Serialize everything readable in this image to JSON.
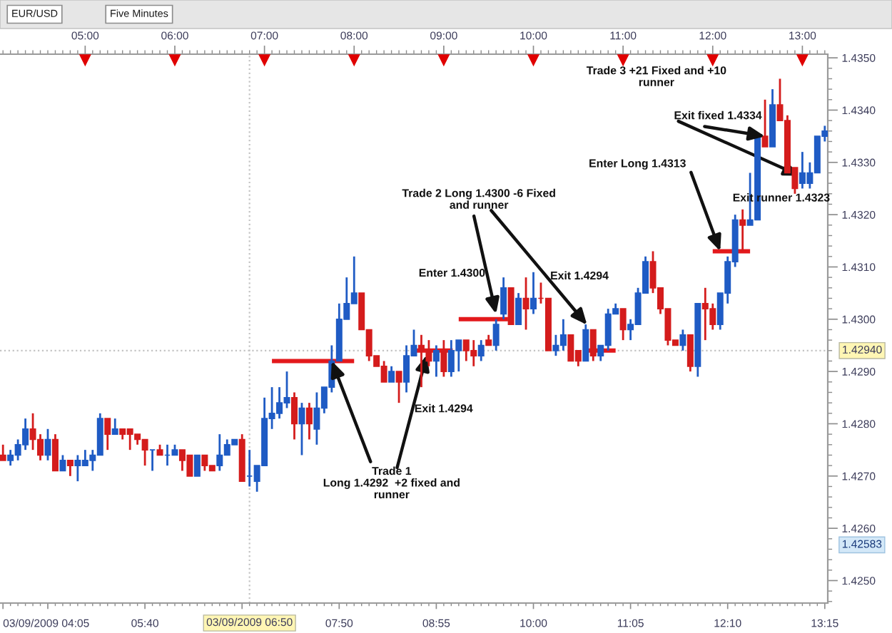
{
  "chart_data": {
    "type": "candlestick",
    "title": "EUR/USD",
    "subtitle": "Five Minutes",
    "x": [
      "2009-09-03T04:05",
      "2009-09-03T04:10",
      "2009-09-03T04:15",
      "2009-09-03T04:20",
      "2009-09-03T04:25",
      "2009-09-03T04:30",
      "2009-09-03T04:35",
      "2009-09-03T04:40",
      "2009-09-03T04:45",
      "2009-09-03T04:50",
      "2009-09-03T04:55",
      "2009-09-03T05:00",
      "2009-09-03T05:05",
      "2009-09-03T05:10",
      "2009-09-03T05:15",
      "2009-09-03T05:20",
      "2009-09-03T05:25",
      "2009-09-03T05:30",
      "2009-09-03T05:35",
      "2009-09-03T05:40",
      "2009-09-03T05:45",
      "2009-09-03T05:50",
      "2009-09-03T05:55",
      "2009-09-03T06:00",
      "2009-09-03T06:05",
      "2009-09-03T06:10",
      "2009-09-03T06:15",
      "2009-09-03T06:20",
      "2009-09-03T06:25",
      "2009-09-03T06:30",
      "2009-09-03T06:35",
      "2009-09-03T06:40",
      "2009-09-03T06:45",
      "2009-09-03T06:50",
      "2009-09-03T06:55",
      "2009-09-03T07:00",
      "2009-09-03T07:05",
      "2009-09-03T07:10",
      "2009-09-03T07:15",
      "2009-09-03T07:20",
      "2009-09-03T07:25",
      "2009-09-03T07:30",
      "2009-09-03T07:35",
      "2009-09-03T07:40",
      "2009-09-03T07:45",
      "2009-09-03T07:50",
      "2009-09-03T07:55",
      "2009-09-03T08:00",
      "2009-09-03T08:05",
      "2009-09-03T08:10",
      "2009-09-03T08:15",
      "2009-09-03T08:20",
      "2009-09-03T08:25",
      "2009-09-03T08:30",
      "2009-09-03T08:35",
      "2009-09-03T08:40",
      "2009-09-03T08:45",
      "2009-09-03T08:50",
      "2009-09-03T08:55",
      "2009-09-03T09:00",
      "2009-09-03T09:05",
      "2009-09-03T09:10",
      "2009-09-03T09:15",
      "2009-09-03T09:20",
      "2009-09-03T09:25",
      "2009-09-03T09:30",
      "2009-09-03T09:35",
      "2009-09-03T09:40",
      "2009-09-03T09:45",
      "2009-09-03T09:50",
      "2009-09-03T09:55",
      "2009-09-03T10:00",
      "2009-09-03T10:05",
      "2009-09-03T10:10",
      "2009-09-03T10:15",
      "2009-09-03T10:20",
      "2009-09-03T10:25",
      "2009-09-03T10:30",
      "2009-09-03T10:35",
      "2009-09-03T10:40",
      "2009-09-03T10:45",
      "2009-09-03T10:50",
      "2009-09-03T10:55",
      "2009-09-03T11:00",
      "2009-09-03T11:05",
      "2009-09-03T11:10",
      "2009-09-03T11:15",
      "2009-09-03T11:20",
      "2009-09-03T11:25",
      "2009-09-03T11:30",
      "2009-09-03T11:35",
      "2009-09-03T11:40",
      "2009-09-03T11:45",
      "2009-09-03T11:50",
      "2009-09-03T11:55",
      "2009-09-03T12:00",
      "2009-09-03T12:05",
      "2009-09-03T12:10",
      "2009-09-03T12:15",
      "2009-09-03T12:20",
      "2009-09-03T12:25",
      "2009-09-03T12:30",
      "2009-09-03T12:35",
      "2009-09-03T12:40",
      "2009-09-03T12:45",
      "2009-09-03T12:50",
      "2009-09-03T12:55",
      "2009-09-03T13:00",
      "2009-09-03T13:05",
      "2009-09-03T13:10",
      "2009-09-03T13:15"
    ],
    "ohlc": [
      [
        1.4274,
        1.4276,
        1.4273,
        1.4273
      ],
      [
        1.4273,
        1.4275,
        1.4272,
        1.4274
      ],
      [
        1.4274,
        1.4277,
        1.4273,
        1.4276
      ],
      [
        1.4276,
        1.4281,
        1.4275,
        1.4279
      ],
      [
        1.4279,
        1.4282,
        1.4275,
        1.4277
      ],
      [
        1.4277,
        1.4278,
        1.4273,
        1.4274
      ],
      [
        1.4274,
        1.4279,
        1.4273,
        1.4277
      ],
      [
        1.4277,
        1.4278,
        1.4271,
        1.4271
      ],
      [
        1.4271,
        1.4274,
        1.4271,
        1.4273
      ],
      [
        1.4273,
        1.4273,
        1.427,
        1.4272
      ],
      [
        1.4272,
        1.4274,
        1.4269,
        1.4273
      ],
      [
        1.4272,
        1.4275,
        1.4272,
        1.4273
      ],
      [
        1.4273,
        1.4275,
        1.4271,
        1.4274
      ],
      [
        1.4274,
        1.4282,
        1.4274,
        1.4281
      ],
      [
        1.4281,
        1.4281,
        1.4275,
        1.4278
      ],
      [
        1.4278,
        1.4281,
        1.4278,
        1.4279
      ],
      [
        1.4279,
        1.4279,
        1.4277,
        1.4278
      ],
      [
        1.4279,
        1.4279,
        1.4275,
        1.4278
      ],
      [
        1.4278,
        1.4278,
        1.4276,
        1.4277
      ],
      [
        1.4277,
        1.4277,
        1.4272,
        1.4275
      ],
      [
        1.4275,
        1.4275,
        1.4271,
        1.4275
      ],
      [
        1.4275,
        1.4276,
        1.4274,
        1.4274
      ],
      [
        1.4274,
        1.4276,
        1.4272,
        1.4274
      ],
      [
        1.4274,
        1.4276,
        1.4274,
        1.4275
      ],
      [
        1.4275,
        1.4275,
        1.4271,
        1.4273
      ],
      [
        1.4274,
        1.4274,
        1.427,
        1.427
      ],
      [
        1.427,
        1.4274,
        1.427,
        1.4274
      ],
      [
        1.4274,
        1.4274,
        1.4271,
        1.4272
      ],
      [
        1.4272,
        1.4272,
        1.4271,
        1.4271
      ],
      [
        1.4272,
        1.4278,
        1.4271,
        1.4274
      ],
      [
        1.4274,
        1.4277,
        1.4274,
        1.4276
      ],
      [
        1.4276,
        1.4277,
        1.4276,
        1.4277
      ],
      [
        1.4277,
        1.4278,
        1.4269,
        1.4269
      ],
      [
        1.427,
        1.4275,
        1.4268,
        1.427
      ],
      [
        1.4269,
        1.4272,
        1.4267,
        1.4272
      ],
      [
        1.4272,
        1.4285,
        1.4272,
        1.4281
      ],
      [
        1.4281,
        1.4287,
        1.4279,
        1.4282
      ],
      [
        1.4282,
        1.4287,
        1.4281,
        1.4284
      ],
      [
        1.4284,
        1.429,
        1.4283,
        1.4285
      ],
      [
        1.4285,
        1.4286,
        1.4277,
        1.428
      ],
      [
        1.428,
        1.4284,
        1.4274,
        1.4283
      ],
      [
        1.4283,
        1.4284,
        1.4277,
        1.428
      ],
      [
        1.4279,
        1.4286,
        1.4276,
        1.4283
      ],
      [
        1.4283,
        1.4287,
        1.4282,
        1.4287
      ],
      [
        1.4287,
        1.4295,
        1.4286,
        1.4292
      ],
      [
        1.4292,
        1.4303,
        1.4292,
        1.43
      ],
      [
        1.43,
        1.4308,
        1.43,
        1.4303
      ],
      [
        1.4303,
        1.4312,
        1.4303,
        1.4305
      ],
      [
        1.4305,
        1.4305,
        1.4298,
        1.4298
      ],
      [
        1.4298,
        1.4298,
        1.4292,
        1.4293
      ],
      [
        1.4293,
        1.4293,
        1.4291,
        1.4291
      ],
      [
        1.4291,
        1.4292,
        1.4288,
        1.4288
      ],
      [
        1.4288,
        1.4291,
        1.4288,
        1.429
      ],
      [
        1.429,
        1.429,
        1.4284,
        1.4288
      ],
      [
        1.4288,
        1.4295,
        1.4286,
        1.4293
      ],
      [
        1.4293,
        1.4298,
        1.4293,
        1.4295
      ],
      [
        1.4295,
        1.4297,
        1.4287,
        1.4294
      ],
      [
        1.4294,
        1.4296,
        1.4291,
        1.4292
      ],
      [
        1.4292,
        1.4295,
        1.4289,
        1.4294
      ],
      [
        1.4294,
        1.4296,
        1.4289,
        1.429
      ],
      [
        1.429,
        1.4296,
        1.4289,
        1.4294
      ],
      [
        1.4294,
        1.4296,
        1.429,
        1.4296
      ],
      [
        1.4296,
        1.4296,
        1.4292,
        1.4294
      ],
      [
        1.4294,
        1.4296,
        1.4291,
        1.4293
      ],
      [
        1.4293,
        1.4296,
        1.4292,
        1.4295
      ],
      [
        1.4296,
        1.4297,
        1.4295,
        1.4295
      ],
      [
        1.4295,
        1.43,
        1.4294,
        1.4299
      ],
      [
        1.4301,
        1.4308,
        1.43,
        1.4306
      ],
      [
        1.4306,
        1.4306,
        1.4299,
        1.4299
      ],
      [
        1.4299,
        1.4305,
        1.4299,
        1.4304
      ],
      [
        1.4304,
        1.4308,
        1.4298,
        1.4302
      ],
      [
        1.4302,
        1.4309,
        1.4301,
        1.4304
      ],
      [
        1.4304,
        1.4307,
        1.4303,
        1.4304
      ],
      [
        1.4304,
        1.4304,
        1.4294,
        1.4294
      ],
      [
        1.4294,
        1.4297,
        1.4293,
        1.4295
      ],
      [
        1.4295,
        1.43,
        1.4294,
        1.4297
      ],
      [
        1.4297,
        1.4297,
        1.4292,
        1.4292
      ],
      [
        1.4294,
        1.4294,
        1.4291,
        1.4292
      ],
      [
        1.4292,
        1.4299,
        1.4292,
        1.4298
      ],
      [
        1.4298,
        1.4298,
        1.4292,
        1.4293
      ],
      [
        1.4293,
        1.4295,
        1.4292,
        1.4295
      ],
      [
        1.4295,
        1.4302,
        1.4294,
        1.4301
      ],
      [
        1.4301,
        1.4303,
        1.4301,
        1.4302
      ],
      [
        1.4302,
        1.4302,
        1.4296,
        1.4298
      ],
      [
        1.4298,
        1.43,
        1.4296,
        1.4299
      ],
      [
        1.4299,
        1.4306,
        1.4299,
        1.4305
      ],
      [
        1.4305,
        1.4312,
        1.4305,
        1.4311
      ],
      [
        1.4311,
        1.4313,
        1.4305,
        1.4306
      ],
      [
        1.4306,
        1.4306,
        1.4301,
        1.4302
      ],
      [
        1.4302,
        1.4302,
        1.4295,
        1.4296
      ],
      [
        1.4296,
        1.4296,
        1.4295,
        1.4295
      ],
      [
        1.4295,
        1.4298,
        1.4294,
        1.4297
      ],
      [
        1.4297,
        1.4297,
        1.429,
        1.4291
      ],
      [
        1.4291,
        1.4303,
        1.4289,
        1.4303
      ],
      [
        1.4303,
        1.4306,
        1.4296,
        1.4302
      ],
      [
        1.4302,
        1.4303,
        1.4298,
        1.4299
      ],
      [
        1.4299,
        1.4305,
        1.4298,
        1.4305
      ],
      [
        1.4305,
        1.4312,
        1.4303,
        1.4311
      ],
      [
        1.4311,
        1.432,
        1.431,
        1.4319
      ],
      [
        1.4319,
        1.4321,
        1.4313,
        1.4318
      ],
      [
        1.4318,
        1.4328,
        1.4318,
        1.4319
      ],
      [
        1.4319,
        1.4335,
        1.4319,
        1.4335
      ],
      [
        1.4335,
        1.4342,
        1.4333,
        1.4333
      ],
      [
        1.4333,
        1.4344,
        1.4333,
        1.4341
      ],
      [
        1.4341,
        1.4346,
        1.4338,
        1.4338
      ],
      [
        1.4338,
        1.4339,
        1.4328,
        1.4328
      ],
      [
        1.4329,
        1.4329,
        1.4324,
        1.4325
      ],
      [
        1.4326,
        1.4332,
        1.4325,
        1.4328
      ],
      [
        1.4326,
        1.433,
        1.4325,
        1.4328
      ],
      [
        1.4328,
        1.4335,
        1.4328,
        1.4335
      ],
      [
        1.4335,
        1.4337,
        1.4334,
        1.4336
      ]
    ],
    "colors": [
      "#d41c1c",
      "#1f5bc4",
      "#1f5bc4",
      "#1f5bc4",
      "#d41c1c",
      "#d41c1c",
      "#1f5bc4",
      "#d41c1c",
      "#1f5bc4",
      "#d41c1c",
      "#1f5bc4",
      "#1f5bc4",
      "#1f5bc4",
      "#1f5bc4",
      "#d41c1c",
      "#1f5bc4",
      "#d41c1c",
      "#d41c1c",
      "#d41c1c",
      "#d41c1c",
      "#1f5bc4",
      "#d41c1c",
      "#1f5bc4",
      "#1f5bc4",
      "#d41c1c",
      "#d41c1c",
      "#1f5bc4",
      "#d41c1c",
      "#d41c1c",
      "#1f5bc4",
      "#1f5bc4",
      "#1f5bc4",
      "#d41c1c",
      "#1f5bc4",
      "#1f5bc4",
      "#1f5bc4",
      "#1f5bc4",
      "#1f5bc4",
      "#1f5bc4",
      "#d41c1c",
      "#1f5bc4",
      "#d41c1c",
      "#1f5bc4",
      "#1f5bc4",
      "#1f5bc4",
      "#1f5bc4",
      "#1f5bc4",
      "#1f5bc4",
      "#d41c1c",
      "#d41c1c",
      "#d41c1c",
      "#d41c1c",
      "#1f5bc4",
      "#d41c1c",
      "#1f5bc4",
      "#1f5bc4",
      "#d41c1c",
      "#d41c1c",
      "#1f5bc4",
      "#d41c1c",
      "#1f5bc4",
      "#1f5bc4",
      "#d41c1c",
      "#d41c1c",
      "#1f5bc4",
      "#d41c1c",
      "#1f5bc4",
      "#1f5bc4",
      "#d41c1c",
      "#1f5bc4",
      "#d41c1c",
      "#1f5bc4",
      "#d41c1c",
      "#d41c1c",
      "#1f5bc4",
      "#1f5bc4",
      "#d41c1c",
      "#d41c1c",
      "#1f5bc4",
      "#d41c1c",
      "#1f5bc4",
      "#1f5bc4",
      "#1f5bc4",
      "#d41c1c",
      "#1f5bc4",
      "#1f5bc4",
      "#1f5bc4",
      "#d41c1c",
      "#d41c1c",
      "#d41c1c",
      "#d41c1c",
      "#1f5bc4",
      "#d41c1c",
      "#1f5bc4",
      "#d41c1c",
      "#d41c1c",
      "#1f5bc4",
      "#1f5bc4",
      "#1f5bc4",
      "#d41c1c",
      "#1f5bc4",
      "#1f5bc4",
      "#d41c1c",
      "#1f5bc4",
      "#d41c1c",
      "#d41c1c",
      "#d41c1c",
      "#1f5bc4",
      "#1f5bc4",
      "#1f5bc4",
      "#1f5bc4"
    ],
    "series": [
      {
        "type": "line",
        "x": [
          "2009-09-03T07:05",
          "2009-09-03T08:00"
        ],
        "values": [
          1.4292,
          1.4292
        ],
        "color": "#e3191c"
      },
      {
        "type": "line",
        "x": [
          "2009-09-03T08:41",
          "2009-09-03T09:06"
        ],
        "values": [
          1.4294,
          1.4294
        ],
        "color": "#e3191c"
      },
      {
        "type": "line",
        "x": [
          "2009-09-03T09:10",
          "2009-09-03T09:43"
        ],
        "values": [
          1.43,
          1.43
        ],
        "color": "#e3191c"
      },
      {
        "type": "line",
        "x": [
          "2009-09-03T10:34",
          "2009-09-03T10:55"
        ],
        "values": [
          1.4294,
          1.4294
        ],
        "color": "#e3191c"
      },
      {
        "type": "line",
        "x": [
          "2009-09-03T12:00",
          "2009-09-03T12:25"
        ],
        "values": [
          1.4313,
          1.4313
        ],
        "color": "#e3191c"
      }
    ],
    "xlim": [
      "2009-09-03T04:03",
      "2009-09-03T13:17"
    ],
    "ylim": [
      1.42457,
      1.43507
    ],
    "xticks": [
      {
        "value": "2009-09-03T04:05",
        "label": "03/09/2009 04:05"
      },
      {
        "value": "2009-09-03T04:35",
        "label": null
      },
      {
        "value": "2009-09-03T05:40",
        "label": "05:40"
      },
      {
        "value": "2009-09-03T06:45",
        "label": null
      },
      {
        "value": "2009-09-03T07:50",
        "label": "07:50"
      },
      {
        "value": "2009-09-03T08:55",
        "label": "08:55"
      },
      {
        "value": "2009-09-03T10:00",
        "label": "10:00"
      },
      {
        "value": "2009-09-03T11:05",
        "label": "11:05"
      },
      {
        "value": "2009-09-03T12:10",
        "label": "12:10"
      },
      {
        "value": "2009-09-03T13:15",
        "label": "13:15"
      }
    ],
    "x2lim": [
      "2009-09-03T04:03",
      "2009-09-03T13:17"
    ],
    "x2ticks": [
      {
        "value": "2009-09-03T05:00",
        "label": "05:00"
      },
      {
        "value": "2009-09-03T06:00",
        "label": "06:00"
      },
      {
        "value": "2009-09-03T07:00",
        "label": "07:00"
      },
      {
        "value": "2009-09-03T08:00",
        "label": "08:00"
      },
      {
        "value": "2009-09-03T09:00",
        "label": "09:00"
      },
      {
        "value": "2009-09-03T10:00",
        "label": "10:00"
      },
      {
        "value": "2009-09-03T11:00",
        "label": "11:00"
      },
      {
        "value": "2009-09-03T12:00",
        "label": "12:00"
      },
      {
        "value": "2009-09-03T13:00",
        "label": "13:00"
      }
    ],
    "yticks": [
      {
        "value": 1.425,
        "label": "1.4250"
      },
      {
        "value": 1.426,
        "label": "1.4260"
      },
      {
        "value": 1.427,
        "label": "1.4270"
      },
      {
        "value": 1.428,
        "label": "1.4280"
      },
      {
        "value": 1.429,
        "label": "1.4290"
      },
      {
        "value": 1.43,
        "label": "1.4300"
      },
      {
        "value": 1.431,
        "label": "1.4310"
      },
      {
        "value": 1.432,
        "label": "1.4320"
      },
      {
        "value": 1.433,
        "label": "1.4330"
      },
      {
        "value": 1.434,
        "label": "1.4340"
      },
      {
        "value": 1.435,
        "label": "1.4350"
      }
    ],
    "ref_lines": [
      {
        "axis": "x",
        "value": "2009-09-03T06:50",
        "label": "03/09/2009 06:50",
        "line_style": "dotted",
        "color": "#c4c4c4"
      },
      {
        "axis": "y",
        "value": 1.4294,
        "label": "1.42940",
        "line_style": "dotted",
        "color": "#c4c4c4"
      }
    ],
    "annotations": [
      {
        "text": "Trade 1\nLong 1.4292  +2 fixed and\nrunner",
        "x": "2009-09-03T07:45",
        "y": 1.4292
      },
      "Exit 1.4294",
      {
        "text": "Trade 2 Long 1.4300 -6 Fixed\nand runner",
        "x": "2009-09-03T09:35",
        "y": 1.4301
      },
      "Enter 1.4300",
      "Exit 1.4294",
      "Trade 3 +21 Fixed and +10\nrunner",
      {
        "text": "Exit fixed 1.4334",
        "x": "2009-09-03T12:35",
        "y": 1.4335
      },
      {
        "text": "Enter Long 1.4313",
        "x": "2009-09-03T12:05",
        "y": 1.4313
      },
      {
        "text": "Exit runner 1.4323",
        "x": "2009-09-03T13:05",
        "y": 1.4325
      },
      "1.42583"
    ]
  }
}
